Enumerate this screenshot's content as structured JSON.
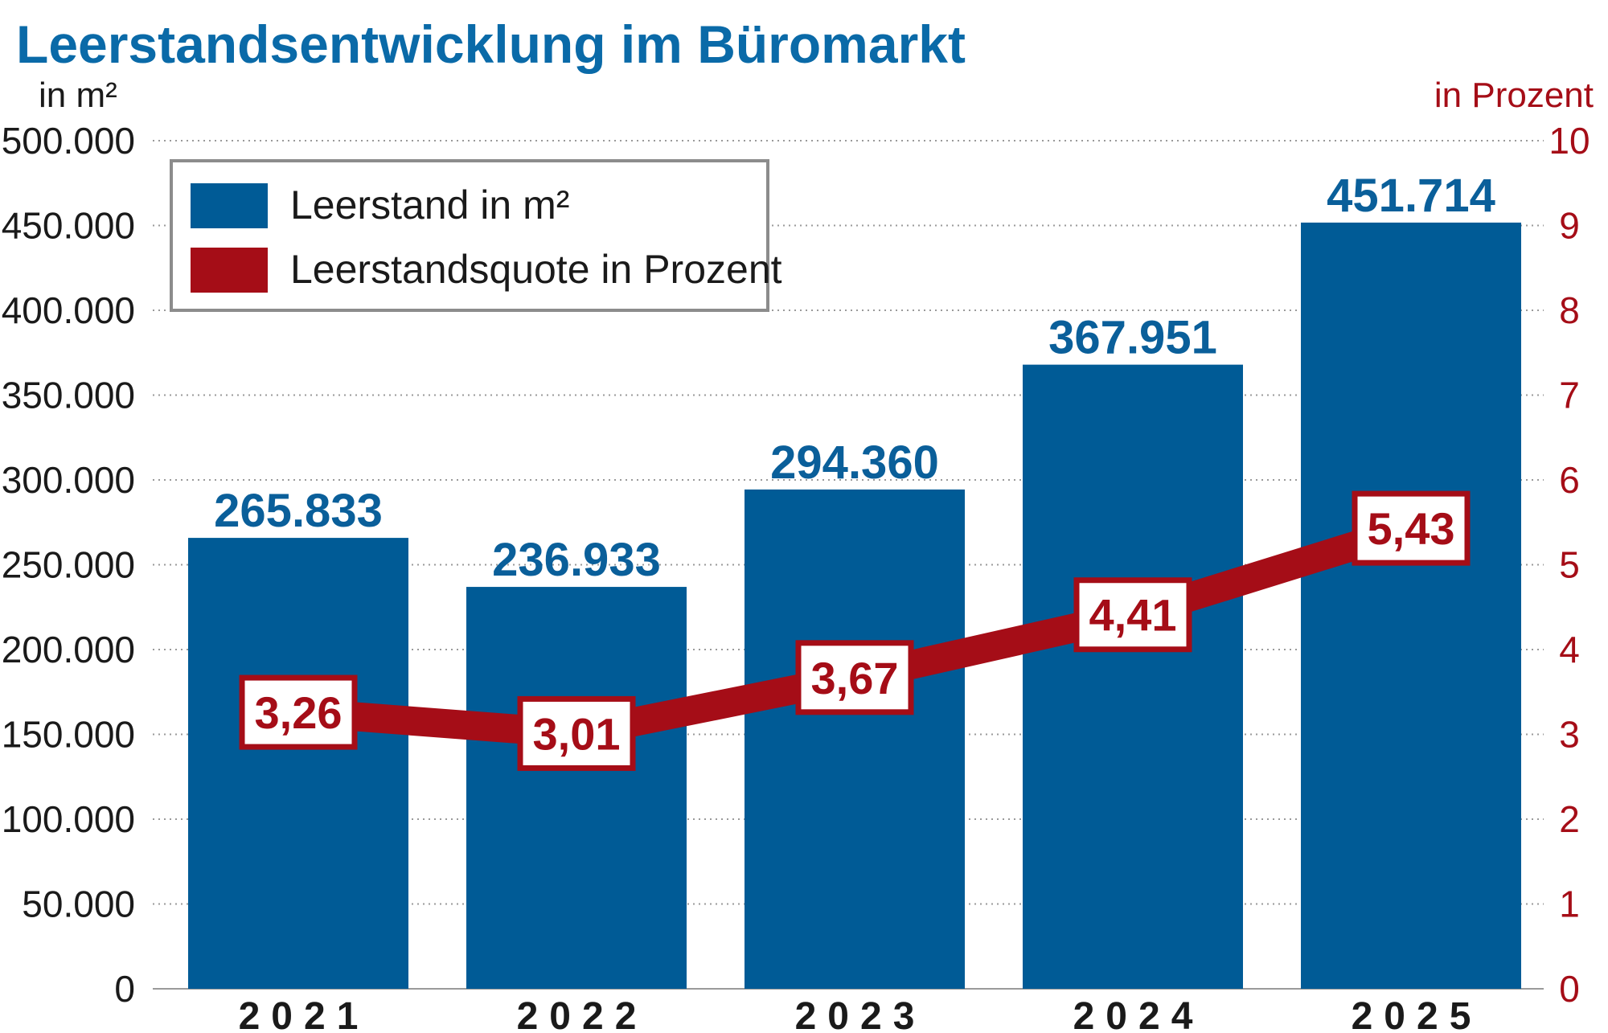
{
  "chart_data": {
    "type": "bar",
    "title": "Leerstandsentwicklung im Büromarkt",
    "ylabel_left": "in m²",
    "ylabel_right": "in Prozent",
    "categories": [
      "2021",
      "2022",
      "2023",
      "2024",
      "2025"
    ],
    "ylim_left": [
      0,
      500000
    ],
    "ylim_right": [
      0,
      10
    ],
    "yticks_left": [
      "0",
      "50.000",
      "100.000",
      "150.000",
      "200.000",
      "250.000",
      "300.000",
      "350.000",
      "400.000",
      "450.000",
      "500.000"
    ],
    "yticks_right": [
      "0",
      "1",
      "2",
      "3",
      "4",
      "5",
      "6",
      "7",
      "8",
      "9",
      "10"
    ],
    "grid": true,
    "legend_placement": "top-left",
    "series": [
      {
        "name": "Leerstand in m²",
        "type": "bar",
        "axis": "left",
        "color": "#005b96",
        "values": [
          265833,
          236933,
          294360,
          367951,
          451714
        ],
        "labels": [
          "265.833",
          "236.933",
          "294.360",
          "367.951",
          "451.714"
        ]
      },
      {
        "name": "Leerstandsquote in Prozent",
        "type": "line",
        "axis": "right",
        "color": "#a50d17",
        "values": [
          3.26,
          3.01,
          3.67,
          4.41,
          5.43
        ],
        "labels": [
          "3,26",
          "3,01",
          "3,67",
          "4,41",
          "5,43"
        ]
      }
    ]
  }
}
